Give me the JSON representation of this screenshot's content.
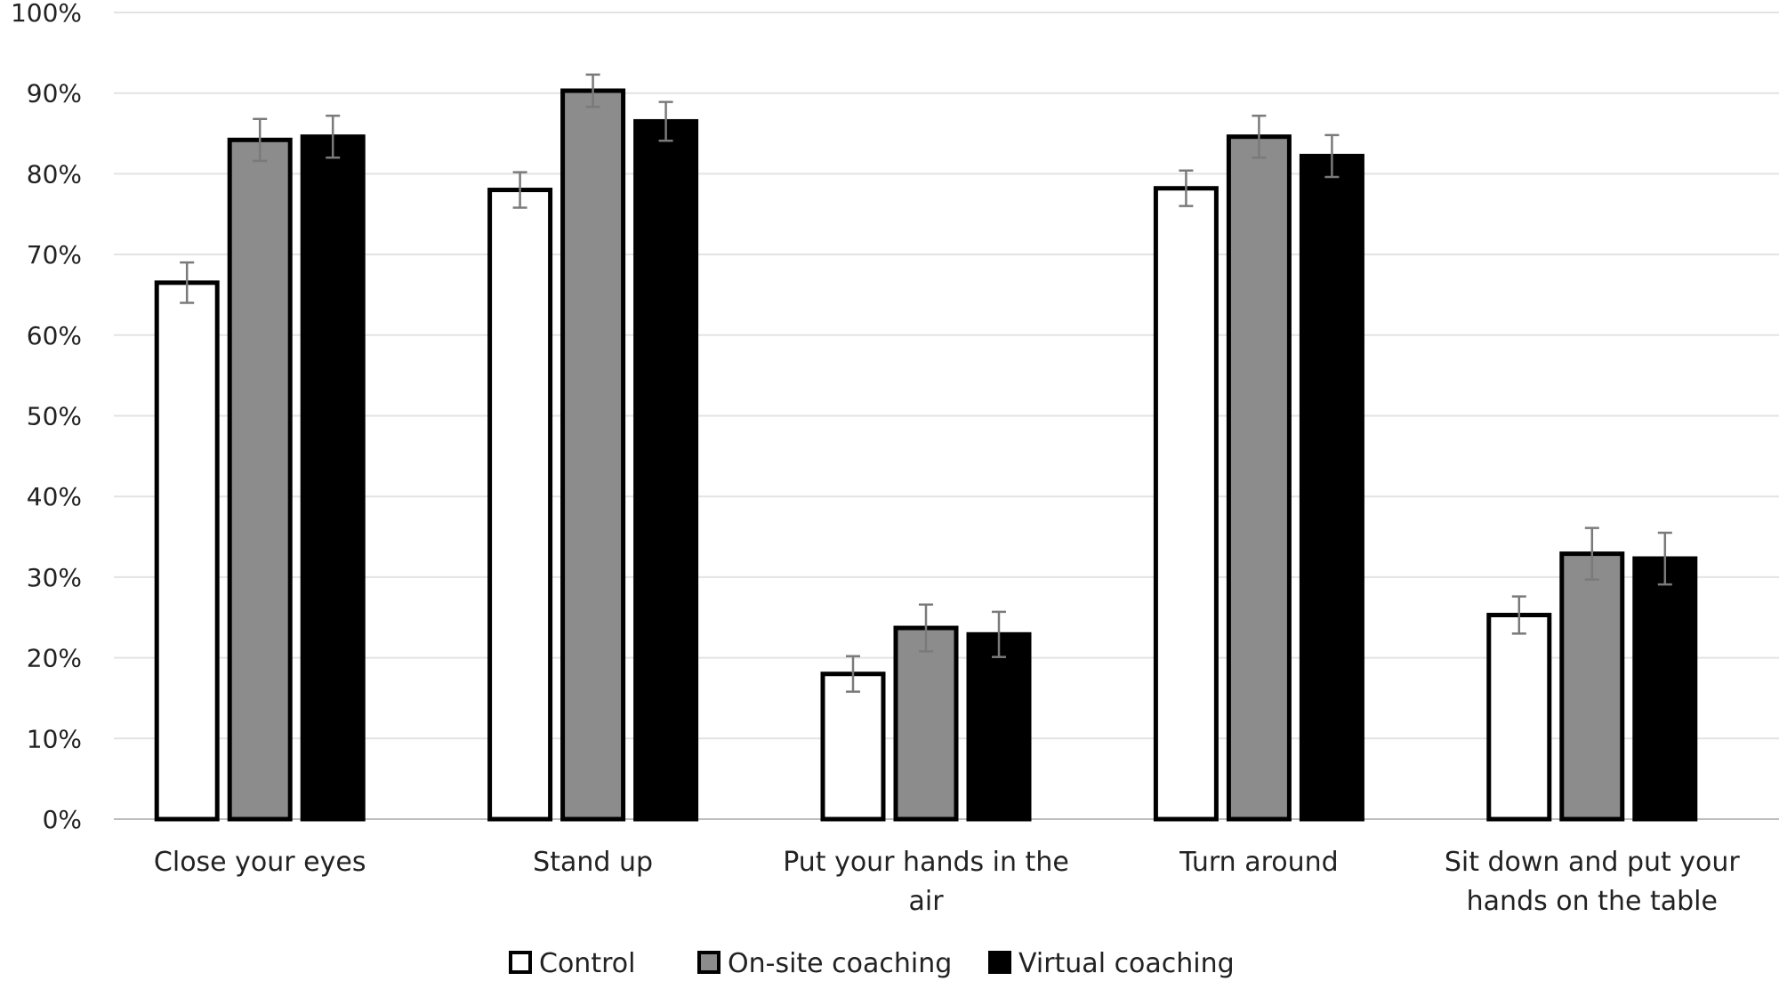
{
  "chart_data": {
    "type": "bar",
    "ylim": [
      0,
      100
    ],
    "yticks": [
      "0%",
      "10%",
      "20%",
      "30%",
      "40%",
      "50%",
      "60%",
      "70%",
      "80%",
      "90%",
      "100%"
    ],
    "categories": [
      [
        "Close your eyes"
      ],
      [
        "Stand up"
      ],
      [
        "Put your hands in the",
        "air"
      ],
      [
        "Turn around"
      ],
      [
        "Sit down and put your",
        "hands on the table"
      ]
    ],
    "series": [
      {
        "name": "Control",
        "color": "#ffffff",
        "values": [
          66.5,
          78,
          18,
          78.2,
          25.3
        ],
        "errors": [
          2.5,
          2.2,
          2.2,
          2.2,
          2.3
        ]
      },
      {
        "name": "On-site coaching",
        "color": "#8c8c8c",
        "values": [
          84.2,
          90.3,
          23.7,
          84.6,
          32.9
        ],
        "errors": [
          2.6,
          2.0,
          2.9,
          2.6,
          3.2
        ]
      },
      {
        "name": "Virtual coaching",
        "color": "#000000",
        "values": [
          84.6,
          86.5,
          22.9,
          82.2,
          32.3
        ],
        "errors": [
          2.6,
          2.4,
          2.8,
          2.6,
          3.2
        ]
      }
    ],
    "grid": true,
    "legend_position": "bottom-center"
  }
}
